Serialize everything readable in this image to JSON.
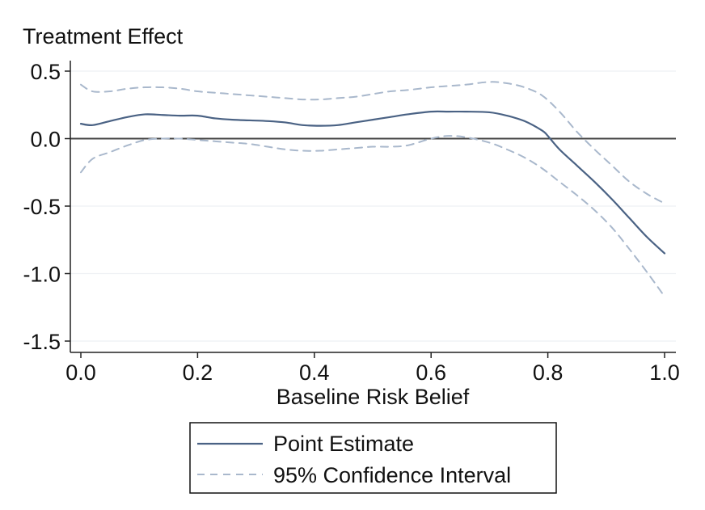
{
  "chart_data": {
    "type": "line",
    "title": "",
    "ylabel": "Treatment Effect",
    "xlabel": "Baseline Risk Belief",
    "xlim": [
      0.0,
      1.0
    ],
    "ylim": [
      -1.5,
      0.5
    ],
    "xticks": [
      0.0,
      0.2,
      0.4,
      0.6,
      0.8,
      1.0
    ],
    "xtick_labels": [
      "0.0",
      "0.2",
      "0.4",
      "0.6",
      "0.8",
      "1.0"
    ],
    "yticks": [
      -1.5,
      -1.0,
      -0.5,
      0.0,
      0.5
    ],
    "ytick_labels": [
      "-1.5",
      "-1.0",
      "-0.5",
      "0.0",
      "0.5"
    ],
    "grid": true,
    "reference_line_y": 0.0,
    "legend_position": "bottom-center",
    "colors": {
      "point_estimate": "#4a6284",
      "confidence_interval": "#a9b8cc",
      "axis": "#222222",
      "grid": "#eef1f4",
      "reference": "#444444"
    },
    "series": [
      {
        "name": "Point Estimate",
        "style": "solid",
        "x": [
          0.0,
          0.02,
          0.05,
          0.08,
          0.11,
          0.14,
          0.17,
          0.2,
          0.23,
          0.26,
          0.29,
          0.32,
          0.35,
          0.38,
          0.41,
          0.44,
          0.47,
          0.5,
          0.53,
          0.56,
          0.6,
          0.63,
          0.66,
          0.7,
          0.73,
          0.76,
          0.79,
          0.8,
          0.82,
          0.85,
          0.88,
          0.91,
          0.94,
          0.97,
          1.0
        ],
        "y": [
          0.11,
          0.1,
          0.13,
          0.16,
          0.18,
          0.175,
          0.17,
          0.17,
          0.15,
          0.14,
          0.135,
          0.13,
          0.12,
          0.1,
          0.095,
          0.1,
          0.12,
          0.14,
          0.16,
          0.18,
          0.2,
          0.2,
          0.2,
          0.195,
          0.17,
          0.13,
          0.06,
          0.02,
          -0.08,
          -0.2,
          -0.32,
          -0.45,
          -0.59,
          -0.73,
          -0.85
        ]
      },
      {
        "name": "95% Confidence Interval",
        "style": "dashed",
        "bound": "upper",
        "x": [
          0.0,
          0.02,
          0.05,
          0.08,
          0.11,
          0.14,
          0.17,
          0.2,
          0.23,
          0.26,
          0.29,
          0.32,
          0.35,
          0.38,
          0.41,
          0.44,
          0.47,
          0.5,
          0.53,
          0.56,
          0.6,
          0.63,
          0.66,
          0.7,
          0.73,
          0.76,
          0.79,
          0.82,
          0.85,
          0.88,
          0.91,
          0.94,
          0.97,
          1.0
        ],
        "y": [
          0.4,
          0.35,
          0.35,
          0.37,
          0.38,
          0.38,
          0.37,
          0.35,
          0.34,
          0.33,
          0.32,
          0.31,
          0.3,
          0.29,
          0.29,
          0.3,
          0.31,
          0.33,
          0.35,
          0.36,
          0.38,
          0.39,
          0.4,
          0.42,
          0.41,
          0.38,
          0.32,
          0.2,
          0.05,
          -0.08,
          -0.2,
          -0.32,
          -0.41,
          -0.48
        ]
      },
      {
        "name": "95% Confidence Interval",
        "style": "dashed",
        "bound": "lower",
        "x": [
          0.0,
          0.02,
          0.05,
          0.08,
          0.11,
          0.14,
          0.17,
          0.2,
          0.23,
          0.26,
          0.29,
          0.32,
          0.35,
          0.38,
          0.41,
          0.44,
          0.47,
          0.5,
          0.53,
          0.56,
          0.6,
          0.63,
          0.66,
          0.7,
          0.73,
          0.76,
          0.79,
          0.82,
          0.85,
          0.88,
          0.91,
          0.94,
          0.97,
          1.0
        ],
        "y": [
          -0.25,
          -0.15,
          -0.1,
          -0.05,
          -0.01,
          0.0,
          0.0,
          -0.01,
          -0.02,
          -0.03,
          -0.04,
          -0.06,
          -0.08,
          -0.09,
          -0.09,
          -0.08,
          -0.07,
          -0.06,
          -0.06,
          -0.05,
          0.0,
          0.02,
          0.01,
          -0.03,
          -0.08,
          -0.14,
          -0.22,
          -0.32,
          -0.42,
          -0.53,
          -0.66,
          -0.82,
          -0.99,
          -1.17
        ]
      }
    ],
    "legend": [
      {
        "label": "Point Estimate",
        "style": "solid"
      },
      {
        "label": "95% Confidence Interval",
        "style": "dashed"
      }
    ]
  }
}
